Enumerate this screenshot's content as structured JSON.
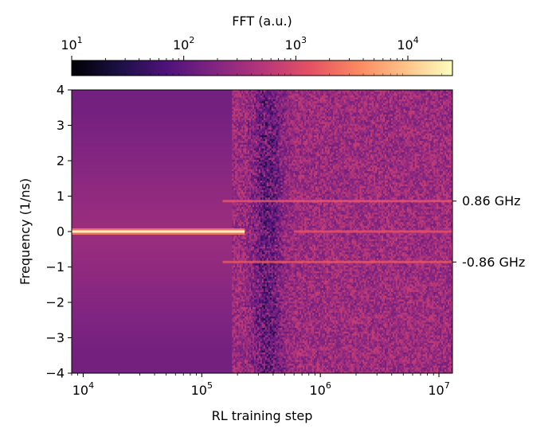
{
  "chart_data": {
    "type": "heatmap",
    "colormap": "magma",
    "xlabel": "RL training step",
    "ylabel": "Frequency (1/ns)",
    "x_scale": "log",
    "xlim": [
      8000,
      13000000
    ],
    "x_ticks": [
      {
        "base": "10",
        "exp": "4",
        "value": 10000
      },
      {
        "base": "10",
        "exp": "5",
        "value": 100000
      },
      {
        "base": "10",
        "exp": "6",
        "value": 1000000
      },
      {
        "base": "10",
        "exp": "7",
        "value": 10000000
      }
    ],
    "ylim": [
      -4,
      4
    ],
    "y_ticks": [
      "4",
      "3",
      "2",
      "1",
      "0",
      "−1",
      "−2",
      "−3",
      "−4"
    ],
    "y_tick_values": [
      4,
      3,
      2,
      1,
      0,
      -1,
      -2,
      -3,
      -4
    ],
    "colorbar": {
      "label": "FFT (a.u.)",
      "scale": "log",
      "range": [
        10,
        25000
      ],
      "ticks": [
        {
          "base": "10",
          "exp": "1",
          "value": 10
        },
        {
          "base": "10",
          "exp": "2",
          "value": 100
        },
        {
          "base": "10",
          "exp": "3",
          "value": 1000
        },
        {
          "base": "10",
          "exp": "4",
          "value": 10000
        }
      ]
    },
    "features": [
      {
        "name": "DC line",
        "frequency": 0,
        "step_range": [
          8000,
          230000
        ],
        "intensity": 20000
      },
      {
        "name": "sideband",
        "frequency": 0.86,
        "step_range": [
          150000,
          13000000
        ],
        "intensity": 1500
      },
      {
        "name": "sideband",
        "frequency": -0.86,
        "step_range": [
          150000,
          13000000
        ],
        "intensity": 1500
      }
    ],
    "annotations": [
      {
        "text": "0.86 GHz",
        "y": 0.86
      },
      {
        "text": "-0.86 GHz",
        "y": -0.86
      }
    ]
  }
}
